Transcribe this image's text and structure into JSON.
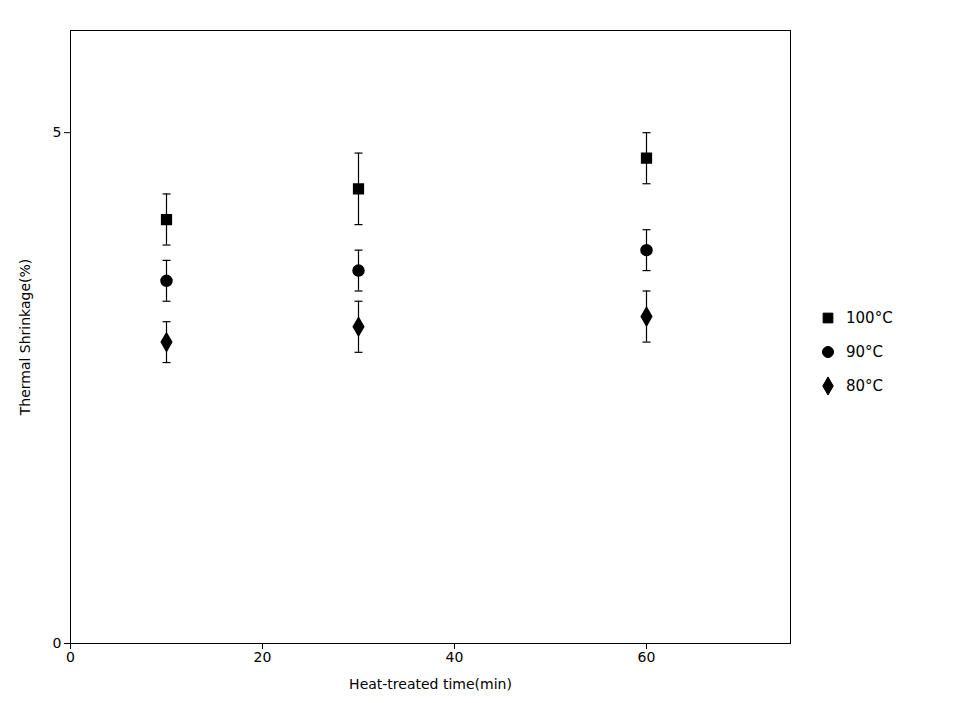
{
  "chart_data": {
    "type": "scatter",
    "xlabel": "Heat-treated time(min)",
    "ylabel": "Thermal Shrinkage(%)",
    "x": [
      10,
      30,
      60
    ],
    "xlim": [
      0,
      75
    ],
    "ylim": [
      0,
      6
    ],
    "xticks": [
      0,
      20,
      40,
      60
    ],
    "yticks": [
      0,
      5
    ],
    "grid": false,
    "legend": "right",
    "color": "#000000",
    "series": [
      {
        "name": "100°C",
        "marker": "square",
        "values": [
          4.15,
          4.45,
          4.75
        ],
        "yerr": [
          0.25,
          0.35,
          0.25
        ]
      },
      {
        "name": "90°C",
        "marker": "circle",
        "values": [
          3.55,
          3.65,
          3.85
        ],
        "yerr": [
          0.2,
          0.2,
          0.2
        ]
      },
      {
        "name": "80°C",
        "marker": "diamond",
        "values": [
          2.95,
          3.1,
          3.2
        ],
        "yerr": [
          0.2,
          0.25,
          0.25
        ]
      }
    ]
  }
}
